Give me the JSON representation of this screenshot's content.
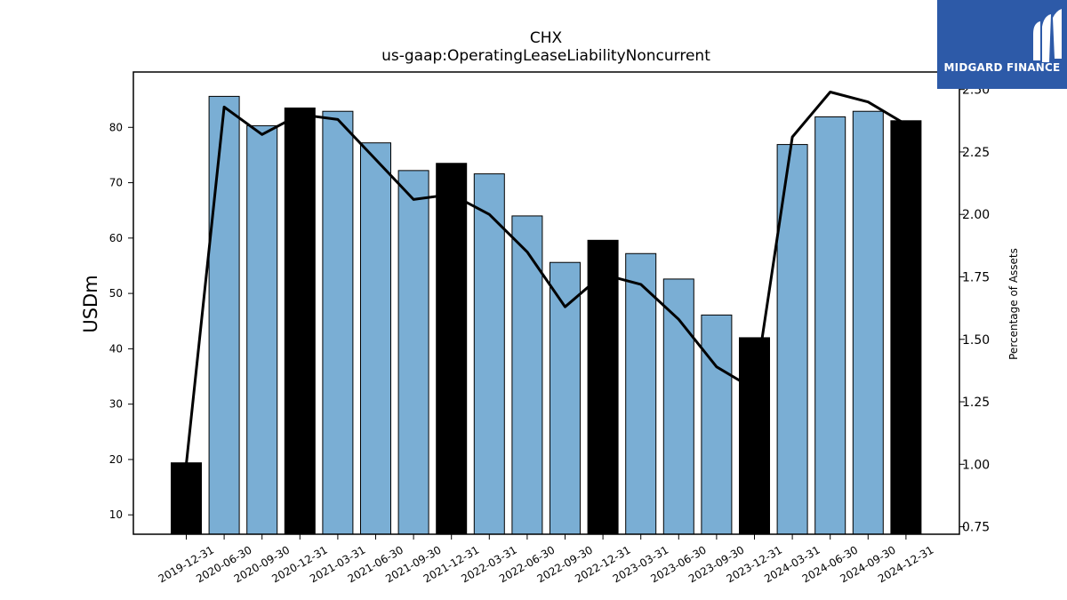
{
  "logo": {
    "text": "MIDGARD FINANCE"
  },
  "colors": {
    "bar_default": "#7aaed4",
    "bar_highlight": "#000000",
    "line": "#000000",
    "logo_bg": "#2d5aa8"
  },
  "chart_data": {
    "type": "bar",
    "title": "CHX",
    "subtitle": "us-gaap:OperatingLeaseLiabilityNoncurrent",
    "ylabel": "USDm",
    "y2label": "Percentage of Assets",
    "categories": [
      "2019-12-31",
      "2020-06-30",
      "2020-09-30",
      "2020-12-31",
      "2021-03-31",
      "2021-06-30",
      "2021-09-30",
      "2021-12-31",
      "2022-03-31",
      "2022-06-30",
      "2022-09-30",
      "2022-12-31",
      "2023-03-31",
      "2023-06-30",
      "2023-09-30",
      "2023-12-31",
      "2024-03-31",
      "2024-06-30",
      "2024-09-30",
      "2024-12-31"
    ],
    "values": [
      19.4,
      85.6,
      80.3,
      83.5,
      82.9,
      77.2,
      72.2,
      73.5,
      71.6,
      64.0,
      55.6,
      59.6,
      57.2,
      52.6,
      46.1,
      42.0,
      76.9,
      81.9,
      82.9,
      81.2
    ],
    "highlight": [
      true,
      false,
      false,
      true,
      false,
      false,
      false,
      true,
      false,
      false,
      false,
      true,
      false,
      false,
      false,
      true,
      false,
      false,
      false,
      true
    ],
    "series": [
      {
        "name": "Percentage of Assets",
        "axis": "right",
        "values": [
          1.0,
          2.43,
          2.32,
          2.4,
          2.38,
          2.22,
          2.06,
          2.08,
          2.0,
          1.85,
          1.63,
          1.76,
          1.72,
          1.58,
          1.39,
          1.3,
          2.31,
          2.49,
          2.45,
          2.36
        ]
      }
    ],
    "ylim": [
      6.5,
      90
    ],
    "y2lim": [
      0.72,
      2.57
    ],
    "yticks": [
      "10",
      "20",
      "30",
      "40",
      "50",
      "60",
      "70",
      "80"
    ],
    "y2ticks": [
      "0.75",
      "1.00",
      "1.25",
      "1.50",
      "1.75",
      "2.00",
      "2.25",
      "2.50"
    ],
    "grid": false
  }
}
